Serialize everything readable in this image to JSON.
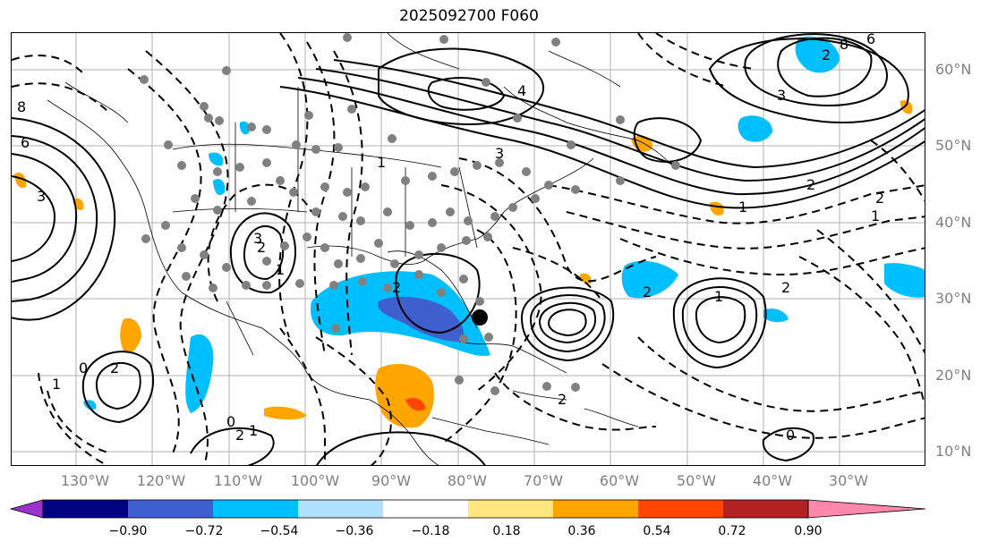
{
  "title": "2025092700 F060",
  "map": {
    "lat_labels": [
      "60°N",
      "50°N",
      "40°N",
      "30°N",
      "20°N",
      "10°N"
    ],
    "lon_labels": [
      "130°W",
      "120°W",
      "110°W",
      "100°W",
      "90°W",
      "80°W",
      "70°W",
      "60°W",
      "50°W",
      "40°W",
      "30°W"
    ],
    "contour_labels": [
      "6",
      "3",
      "8",
      "2",
      "3",
      "2",
      "1",
      "2",
      "4",
      "3",
      "2",
      "1",
      "3",
      "2",
      "6",
      "8",
      "1",
      "2",
      "2",
      "1",
      "0",
      "2",
      "2",
      "1",
      "2",
      "1",
      "0",
      "1",
      "0"
    ],
    "grid_color": "#b0b0b0",
    "marker_color": "#808080"
  },
  "colorbar": {
    "ticks": [
      "−0.90",
      "−0.72",
      "−0.54",
      "−0.36",
      "−0.18",
      "0.18",
      "0.36",
      "0.54",
      "0.72",
      "0.90"
    ],
    "colors": [
      "#9933cc",
      "#000080",
      "#3f5fcf",
      "#00bfff",
      "#b0e2ff",
      "#ffffff",
      "#ffe680",
      "#ffa500",
      "#ff4500",
      "#b22222",
      "#ff88aa"
    ]
  }
}
